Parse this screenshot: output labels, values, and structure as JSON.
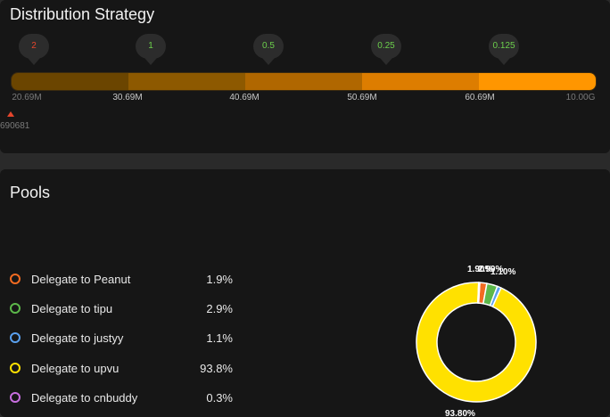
{
  "distribution": {
    "title": "Distribution Strategy",
    "multipliers": [
      {
        "label": "2",
        "color": "#e5452c"
      },
      {
        "label": "1",
        "color": "#6ccf4c"
      },
      {
        "label": "0.5",
        "color": "#6ccf4c"
      },
      {
        "label": "0.25",
        "color": "#6ccf4c"
      },
      {
        "label": "0.125",
        "color": "#6ccf4c"
      }
    ],
    "segment_colors": [
      "#6b4500",
      "#8d5900",
      "#b06700",
      "#dd7d00",
      "#ff9600"
    ],
    "ticks": [
      "20.69M",
      "30.69M",
      "40.69M",
      "50.69M",
      "60.69M",
      "10.00G"
    ],
    "marker_value": "690681",
    "marker_color": "#e5452c"
  },
  "pools": {
    "title": "Pools",
    "items": [
      {
        "label": "Delegate to Peanut",
        "value": "1.9%",
        "share": 1.9,
        "color": "#f26b21"
      },
      {
        "label": "Delegate to tipu",
        "value": "2.9%",
        "share": 2.9,
        "color": "#5cb84a"
      },
      {
        "label": "Delegate to justyy",
        "value": "1.1%",
        "share": 1.1,
        "color": "#5aa0ee"
      },
      {
        "label": "Delegate to upvu",
        "value": "93.8%",
        "share": 93.8,
        "color": "#ffe100"
      },
      {
        "label": "Delegate to cnbuddy",
        "value": "0.3%",
        "share": 0.3,
        "color": "#c86ee0"
      }
    ],
    "pie_labels": [
      "1.90%",
      "2.90%",
      "1.10%",
      "93.80%"
    ]
  }
}
